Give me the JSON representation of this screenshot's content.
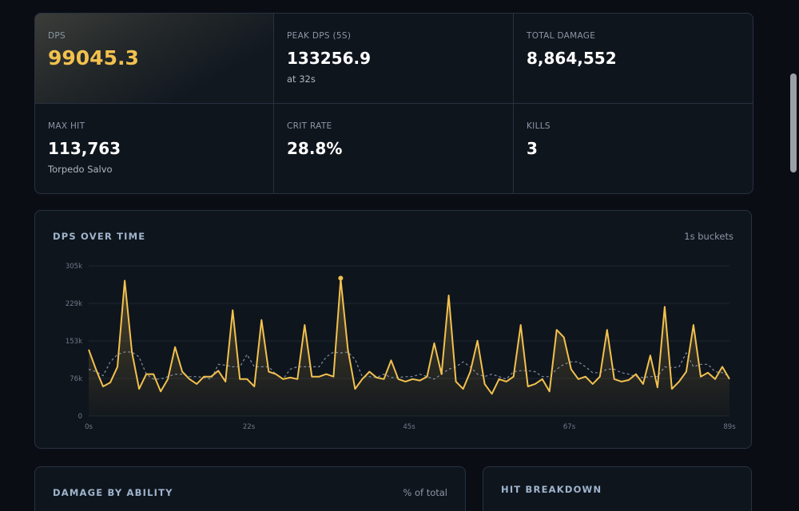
{
  "stats": [
    {
      "label": "DPS",
      "value": "99045.3",
      "sub": "",
      "highlight": true
    },
    {
      "label": "PEAK DPS (5S)",
      "value": "133256.9",
      "sub": "at 32s"
    },
    {
      "label": "TOTAL DAMAGE",
      "value": "8,864,552",
      "sub": ""
    },
    {
      "label": "MAX HIT",
      "value": "113,763",
      "sub": "Torpedo Salvo"
    },
    {
      "label": "CRIT RATE",
      "value": "28.8%",
      "sub": ""
    },
    {
      "label": "KILLS",
      "value": "3",
      "sub": ""
    }
  ],
  "chart_card": {
    "title": "DPS OVER TIME",
    "note": "1s buckets"
  },
  "chart_data": {
    "type": "line",
    "title": "DPS OVER TIME",
    "xlabel": "",
    "ylabel": "",
    "xlim": [
      0,
      89
    ],
    "ylim": [
      0,
      305000
    ],
    "x_ticks": [
      "0s",
      "22s",
      "45s",
      "67s",
      "89s"
    ],
    "y_ticks": [
      "0",
      "76k",
      "153k",
      "229k",
      "305k"
    ],
    "grid": true,
    "colors": {
      "primary": "#f2c14e",
      "secondary": "#7f8ea3"
    },
    "series": [
      {
        "values": [
          135000,
          95000,
          60000,
          68000,
          100000,
          275000,
          130000,
          55000,
          85000,
          85000,
          50000,
          75000,
          140000,
          90000,
          75000,
          65000,
          80000,
          80000,
          92000,
          70000,
          215000,
          75000,
          75000,
          60000,
          195000,
          90000,
          85000,
          75000,
          78000,
          75000,
          185000,
          80000,
          80000,
          85000,
          80000,
          278000,
          135000,
          55000,
          75000,
          90000,
          78000,
          75000,
          113000,
          75000,
          70000,
          75000,
          72000,
          80000,
          148000,
          85000,
          245000,
          70000,
          55000,
          90000,
          153000,
          65000,
          45000,
          75000,
          70000,
          80000,
          185000,
          60000,
          65000,
          75000,
          50000,
          175000,
          160000,
          95000,
          75000,
          80000,
          65000,
          80000,
          175000,
          75000,
          70000,
          73000,
          85000,
          65000,
          123000,
          58000,
          222000,
          55000,
          70000,
          90000,
          185000,
          80000,
          88000,
          75000,
          100000,
          75000
        ]
      },
      {
        "values": [
          95000,
          90000,
          82000,
          110000,
          125000,
          130000,
          130000,
          120000,
          85000,
          75000,
          75000,
          80000,
          85000,
          85000,
          80000,
          80000,
          78000,
          75000,
          105000,
          103000,
          100000,
          100000,
          125000,
          100000,
          100000,
          100000,
          85000,
          75000,
          95000,
          100000,
          100000,
          100000,
          100000,
          120000,
          130000,
          128000,
          130000,
          115000,
          80000,
          80000,
          78000,
          85000,
          78000,
          78000,
          80000,
          80000,
          85000,
          80000,
          75000,
          85000,
          95000,
          100000,
          110000,
          100000,
          85000,
          80000,
          85000,
          80000,
          75000,
          90000,
          92000,
          92000,
          90000,
          80000,
          80000,
          95000,
          105000,
          110000,
          110000,
          100000,
          88000,
          88000,
          95000,
          95000,
          88000,
          85000,
          80000,
          78000,
          80000,
          80000,
          100000,
          98000,
          100000,
          128000,
          100000,
          105000,
          105000,
          90000,
          88000,
          80000
        ]
      }
    ],
    "peak": {
      "x": 35,
      "y": 280000
    }
  },
  "bottom_cards": {
    "ability": {
      "title": "DAMAGE BY ABILITY",
      "note": "% of total"
    },
    "hit": {
      "title": "HIT BREAKDOWN"
    }
  }
}
